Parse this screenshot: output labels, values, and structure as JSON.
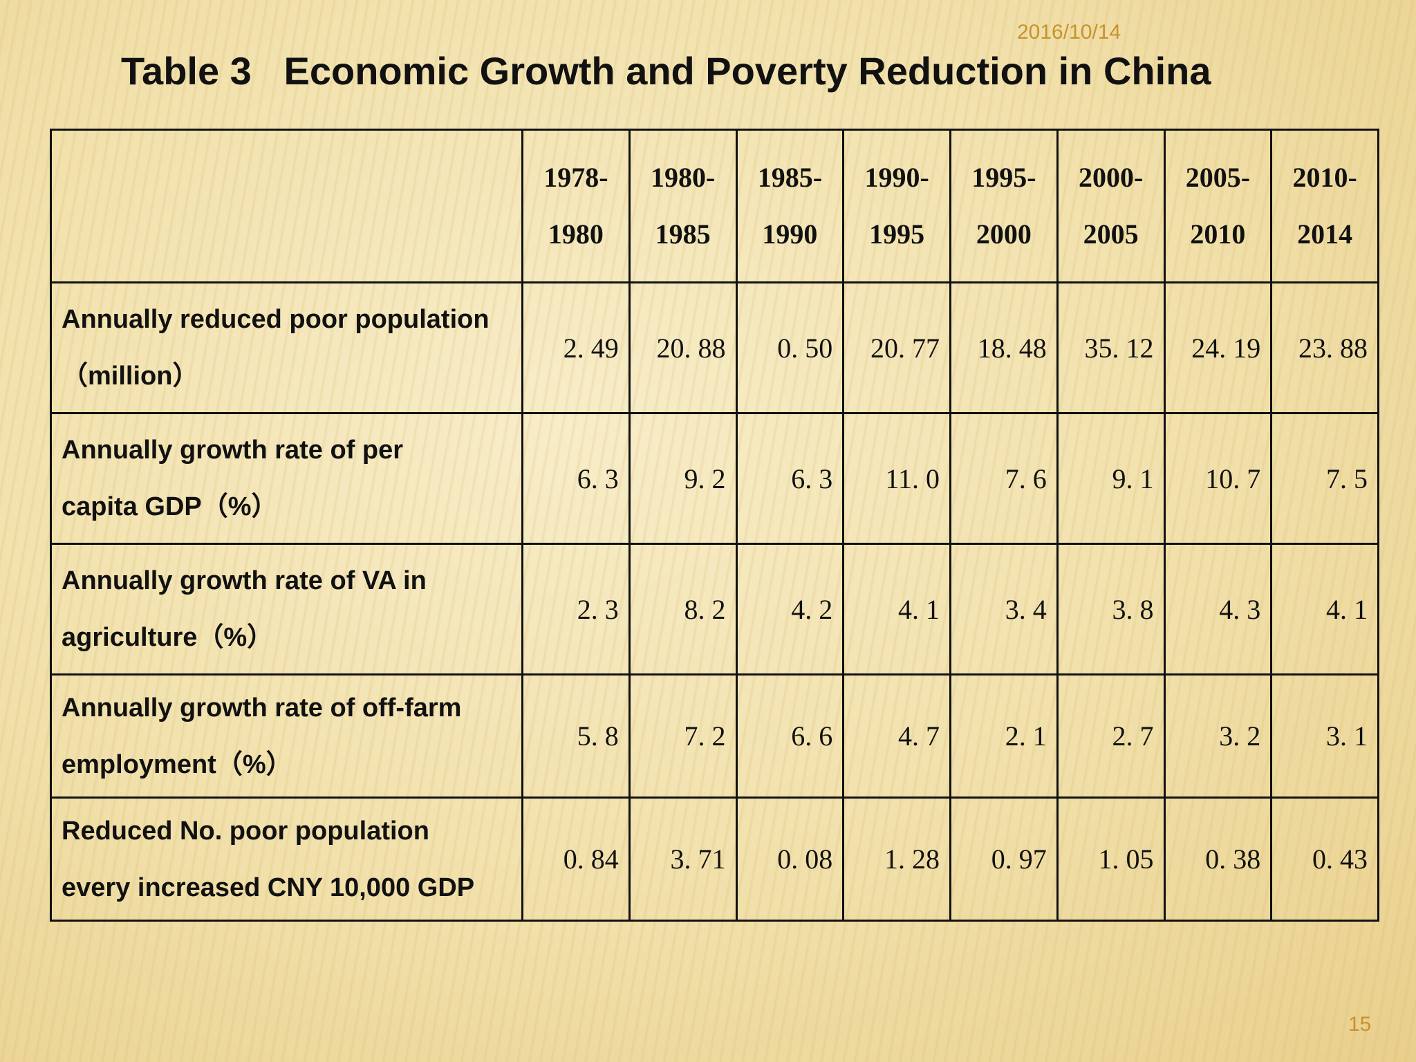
{
  "slide": {
    "date": "2016/10/14",
    "title": "Table 3   Economic Growth and Poverty Reduction in China",
    "page_number": "15"
  },
  "table": {
    "corner_label": "",
    "periods": [
      {
        "start": "1978-",
        "end": "1980"
      },
      {
        "start": "1980-",
        "end": "1985"
      },
      {
        "start": "1985-",
        "end": "1990"
      },
      {
        "start": "1990-",
        "end": "1995"
      },
      {
        "start": "1995-",
        "end": "2000"
      },
      {
        "start": "2000-",
        "end": "2005"
      },
      {
        "start": "2005-",
        "end": "2010"
      },
      {
        "start": "2010-",
        "end": "2014"
      }
    ],
    "rows": [
      {
        "label_line1": "Annually reduced poor population",
        "label_line2": "（million）",
        "values": [
          "2. 49",
          "20. 88",
          "0. 50",
          "20. 77",
          "18. 48",
          "35. 12",
          "24. 19",
          "23. 88"
        ]
      },
      {
        "label_line1": "Annually growth rate of per",
        "label_line2": "capita GDP（%）",
        "values": [
          "6. 3",
          "9. 2",
          "6. 3",
          "11. 0",
          "7. 6",
          "9. 1",
          "10. 7",
          "7. 5"
        ]
      },
      {
        "label_line1": "Annually growth rate of VA in",
        "label_line2": "agriculture（%）",
        "values": [
          "2. 3",
          "8. 2",
          "4. 2",
          "4. 1",
          "3. 4",
          "3. 8",
          "4. 3",
          "4. 1"
        ]
      },
      {
        "label_line1": "Annually growth rate of off-farm",
        "label_line2": "employment（%）",
        "values": [
          "5. 8",
          "7. 2",
          "6. 6",
          "4. 7",
          "2. 1",
          "2. 7",
          "3. 2",
          "3. 1"
        ]
      },
      {
        "label_line1": "Reduced No. poor population",
        "label_line2": "every increased CNY 10,000 GDP",
        "values": [
          "0. 84",
          "3. 71",
          "0. 08",
          "1. 28",
          "0. 97",
          "1. 05",
          "0. 38",
          "0. 43"
        ]
      }
    ]
  }
}
